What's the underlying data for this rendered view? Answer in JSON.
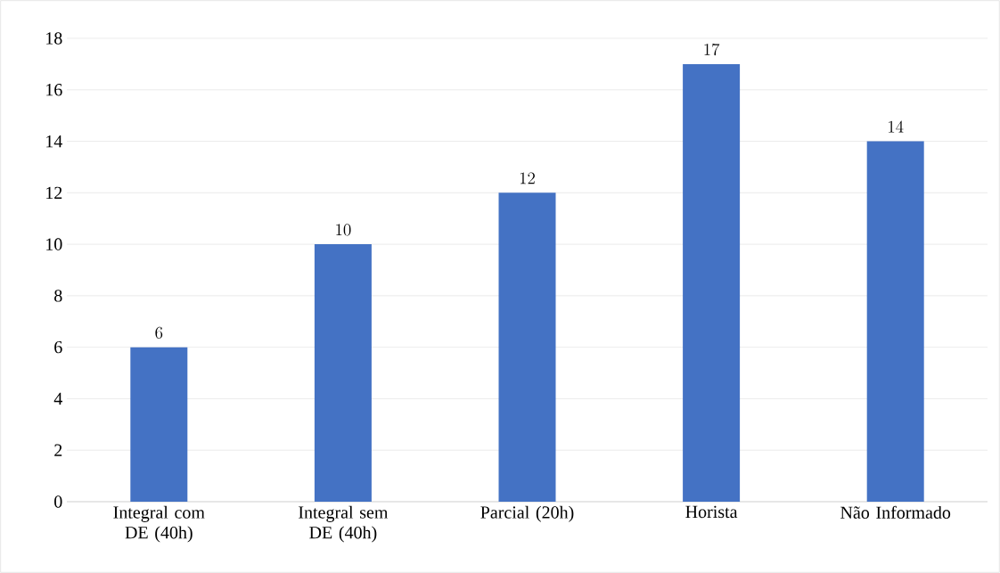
{
  "chart_data": {
    "type": "bar",
    "categories": [
      "Integral com DE (40h)",
      "Integral sem DE (40h)",
      "Parcial (20h)",
      "Horista",
      "Não Informado"
    ],
    "values": [
      6,
      10,
      12,
      17,
      14
    ],
    "color": "#4472c4",
    "ylim": [
      0,
      18
    ],
    "yticks": [
      0,
      2,
      4,
      6,
      8,
      10,
      12,
      14,
      16,
      18
    ],
    "grid": "y",
    "data_labels": true
  }
}
